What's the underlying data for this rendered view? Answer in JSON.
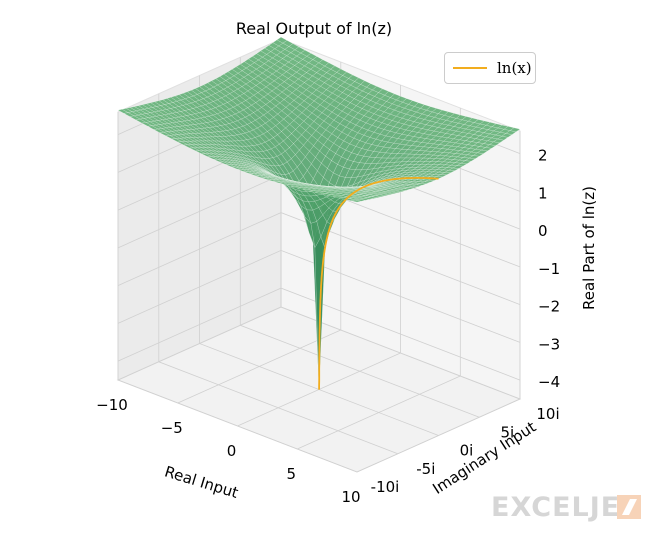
{
  "chart_data": {
    "type": "surface3d",
    "title": "Real Output of ln(z)",
    "xlabel": "Real Input",
    "ylabel": "Imaginary Input",
    "zlabel": "Real Part of ln(z)",
    "x_ticks": [
      "−10",
      "−5",
      "0",
      "5",
      "10"
    ],
    "y_ticks": [
      "-10i",
      "-5i",
      "0i",
      "5i",
      "10i"
    ],
    "z_ticks": [
      "2",
      "1",
      "0",
      "−1",
      "−2",
      "−3",
      "−4"
    ],
    "xlim": [
      -10,
      10
    ],
    "ylim": [
      -10,
      10
    ],
    "zlim": [
      -4.5,
      2.6
    ],
    "surface": {
      "function": "ln|x+iy|",
      "color": "#3f9a68"
    },
    "series": [
      {
        "name": "ln(x)",
        "color": "#f2ad1e",
        "function": "ln(x)",
        "x_range": [
          0.01,
          10
        ]
      }
    ],
    "legend": {
      "position": "top-right",
      "label": "ln(x)"
    },
    "watermark": "EXCELJET"
  }
}
